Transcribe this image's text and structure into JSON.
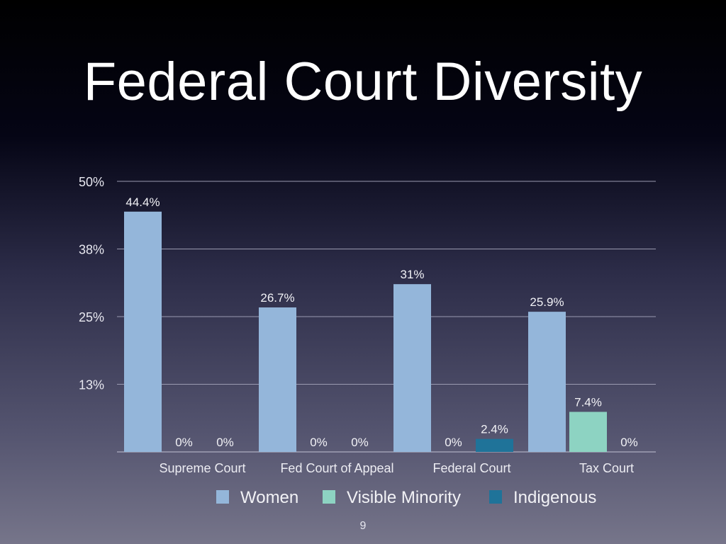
{
  "slide": {
    "title": "Federal Court Diversity",
    "page_number": "9"
  },
  "chart_data": {
    "type": "bar",
    "title": "",
    "categories": [
      "Supreme Court",
      "Fed Court of Appeal",
      "Federal Court",
      "Tax Court"
    ],
    "series": [
      {
        "name": "Women",
        "values": [
          44.4,
          26.7,
          31,
          25.9
        ],
        "labels": [
          "44.4%",
          "26.7%",
          "31%",
          "25.9%"
        ],
        "color": "#94b6da"
      },
      {
        "name": "Visible Minority",
        "values": [
          0,
          0,
          0,
          7.4
        ],
        "labels": [
          "0%",
          "0%",
          "0%",
          "7.4%"
        ],
        "color": "#8dd3c2"
      },
      {
        "name": "Indigenous",
        "values": [
          0,
          0,
          2.4,
          0
        ],
        "labels": [
          "0%",
          "0%",
          "2.4%",
          "0%"
        ],
        "color": "#1f7399"
      }
    ],
    "yticks": [
      {
        "value": 12.5,
        "label": "13%"
      },
      {
        "value": 25,
        "label": "25%"
      },
      {
        "value": 37.5,
        "label": "38%"
      },
      {
        "value": 50,
        "label": "50%"
      }
    ],
    "ylim": [
      0,
      50
    ],
    "grid": true,
    "legend_placement": "bottom"
  }
}
